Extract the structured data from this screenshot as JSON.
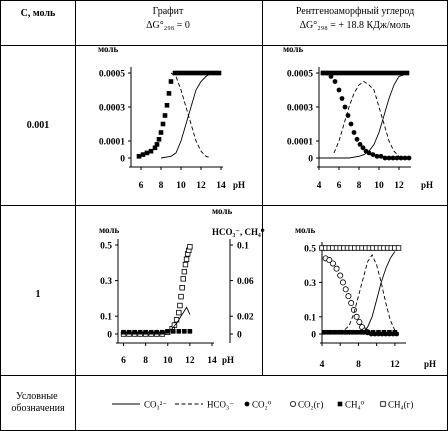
{
  "table": {
    "col_c": "C, моль",
    "col_graphite": "Графит",
    "col_graphite_sub": "ΔG°₂₉₈ = 0",
    "col_amorph": "Рентгеноаморфный углерод",
    "col_amorph_sub": "ΔG°₂₉₈ = + 18.8 КДж/моль",
    "row1": "0.001",
    "row2": "1",
    "row3": "Условные обозначения"
  },
  "legend": {
    "items": [
      {
        "symbol": "line-solid",
        "label": "CO₃²⁻"
      },
      {
        "symbol": "line-dashed",
        "label": "HCO₃⁻"
      },
      {
        "symbol": "filled-circle",
        "label": "CO₂⁰"
      },
      {
        "symbol": "open-circle",
        "label": "CO₂(г)"
      },
      {
        "symbol": "filled-square",
        "label": "CH₄⁰"
      },
      {
        "symbol": "open-square",
        "label": "CH₄(г)"
      }
    ]
  },
  "chart_data": [
    {
      "type": "line",
      "panel": "graphite-0.001",
      "ylabel": "моль",
      "xlabel": "pH",
      "xlim": [
        5,
        14
      ],
      "ylim": [
        0,
        0.0005
      ],
      "xticks": [
        6,
        8,
        10,
        12,
        14
      ],
      "yticks": [
        0,
        0.0001,
        0.0003,
        0.0005
      ],
      "ytick_labels": [
        "0",
        "0.0001",
        "0.0003",
        "0.0005"
      ],
      "series": [
        {
          "style": "line-solid",
          "x": [
            8,
            9,
            9.5,
            10,
            10.5,
            11,
            11.5,
            12,
            12.5,
            13,
            14
          ],
          "y": [
            0,
            1e-05,
            3e-05,
            0.0001,
            0.0002,
            0.0003,
            0.0004,
            0.00045,
            0.00048,
            0.0005,
            0.0005
          ]
        },
        {
          "style": "line-dashed",
          "x": [
            9,
            9.5,
            10,
            10.5,
            11,
            11.5,
            12,
            12.5,
            13
          ],
          "y": [
            0.0005,
            0.00048,
            0.0004,
            0.0003,
            0.0002,
            0.0001,
            4e-05,
            1e-05,
            0
          ]
        },
        {
          "style": "filled-square",
          "x": [
            5.8,
            6.2,
            6.6,
            7,
            7.4,
            7.6,
            7.8,
            8,
            8.2,
            8.4,
            8.6,
            8.8,
            9,
            9.4,
            9.8,
            10.2,
            10.6,
            11,
            11.4,
            11.8,
            12.2,
            12.6,
            13,
            13.4,
            13.8
          ],
          "y": [
            1e-05,
            2e-05,
            3e-05,
            4e-05,
            6e-05,
            8e-05,
            0.00011,
            0.00015,
            0.0002,
            0.00025,
            0.00031,
            0.00038,
            0.00045,
            0.0005,
            0.0005,
            0.0005,
            0.0005,
            0.0005,
            0.0005,
            0.0005,
            0.0005,
            0.0005,
            0.0005,
            0.0005,
            0.0005
          ]
        }
      ]
    },
    {
      "type": "line",
      "panel": "amorphous-0.001",
      "ylabel": "моль",
      "xlabel": "pH",
      "xlim": [
        4,
        13
      ],
      "ylim": [
        0,
        0.0005
      ],
      "xticks": [
        4,
        6,
        8,
        10,
        12
      ],
      "yticks": [
        0,
        0.0001,
        0.0003,
        0.0005
      ],
      "ytick_labels": [
        "0",
        "0.0001",
        "0.0003",
        "0.0005"
      ],
      "series": [
        {
          "style": "line-solid",
          "x": [
            4,
            6,
            7,
            8,
            8.5,
            9,
            9.5,
            10,
            10.5,
            11,
            11.5,
            12,
            13
          ],
          "y": [
            0,
            0,
            0,
            1e-05,
            2e-05,
            4e-05,
            8e-05,
            0.00015,
            0.00025,
            0.00035,
            0.00043,
            0.00048,
            0.0005
          ]
        },
        {
          "style": "line-dashed",
          "x": [
            5.5,
            6,
            6.5,
            7,
            7.5,
            8,
            8.5,
            9,
            9.5,
            10,
            10.5,
            11,
            11.5,
            12
          ],
          "y": [
            3e-05,
            0.0001,
            0.0002,
            0.0003,
            0.00038,
            0.00043,
            0.00045,
            0.00043,
            0.0004,
            0.0003,
            0.0002,
            0.0001,
            4e-05,
            1e-05
          ]
        },
        {
          "style": "filled-circle",
          "x": [
            4.4,
            4.8,
            5.2,
            5.6,
            6,
            6.3,
            6.6,
            6.9,
            7.2,
            7.5,
            7.8,
            8.1,
            8.4,
            8.7,
            9,
            9.4,
            9.8,
            10.2,
            10.6,
            11,
            11.4,
            11.8,
            12.2,
            12.6,
            13
          ],
          "y": [
            0.0005,
            0.0005,
            0.00048,
            0.00045,
            0.0004,
            0.00035,
            0.0003,
            0.00025,
            0.0002,
            0.00015,
            0.00011,
            8e-05,
            6e-05,
            4e-05,
            3e-05,
            2e-05,
            1e-05,
            1e-05,
            0,
            0,
            0,
            0,
            0,
            0,
            0
          ]
        },
        {
          "style": "filled-square",
          "x": [
            4.4,
            4.8,
            5.2,
            5.6,
            6,
            6.4,
            6.8,
            7.2,
            7.6,
            8,
            8.4,
            8.8,
            9.2,
            9.6,
            10,
            10.4,
            10.8,
            11.2,
            11.6,
            12,
            12.4,
            12.8
          ],
          "y": [
            0.0005,
            0.0005,
            0.0005,
            0.0005,
            0.0005,
            0.0005,
            0.0005,
            0.0005,
            0.0005,
            0.0005,
            0.0005,
            0.0005,
            0.0005,
            0.0005,
            0.0005,
            0.0005,
            0.0005,
            0.0005,
            0.0005,
            0.0005,
            0.0005,
            0.0005
          ]
        }
      ]
    },
    {
      "type": "line",
      "panel": "graphite-1",
      "ylabel": "моль",
      "ylabel_right": "моль",
      "ylabel_right2": "HCO₃⁻, CH₄⁰",
      "xlabel": "pH",
      "xlim": [
        5.5,
        14
      ],
      "ylim": [
        0,
        0.5
      ],
      "y2lim": [
        0,
        0.1
      ],
      "xticks": [
        6,
        8,
        10,
        12,
        14
      ],
      "yticks": [
        0,
        0.1,
        0.3,
        0.5
      ],
      "ytick_labels": [
        "0",
        "0.1",
        "0.3",
        "0.5"
      ],
      "y2ticks": [
        0,
        0.02,
        0.06,
        0.1
      ],
      "y2tick_labels": [
        "0",
        "0.02",
        "0.06",
        "0.1"
      ],
      "series": [
        {
          "style": "open-square",
          "x": [
            6,
            6.5,
            7,
            7.5,
            8,
            8.5,
            9,
            9.5,
            10,
            10.4,
            10.6,
            10.8,
            11,
            11.1,
            11.2,
            11.3,
            11.4,
            11.5,
            11.6,
            11.7,
            11.8,
            11.9,
            12
          ],
          "y": [
            0,
            0,
            0,
            0,
            0,
            0,
            0,
            0,
            0.01,
            0.03,
            0.05,
            0.08,
            0.12,
            0.16,
            0.21,
            0.26,
            0.31,
            0.35,
            0.39,
            0.42,
            0.45,
            0.47,
            0.49
          ]
        },
        {
          "style": "line-solid",
          "x": [
            6,
            8,
            9.5,
            10,
            10.4,
            10.8,
            11.2,
            11.5,
            11.7,
            12
          ],
          "y": [
            0.001,
            0.001,
            0.002,
            0.003,
            0.006,
            0.012,
            0.02,
            0.026,
            0.03,
            0.022
          ]
        },
        {
          "style": "filled-square",
          "x": [
            6,
            6.5,
            7,
            7.5,
            8,
            8.5,
            9,
            9.5,
            10,
            10.5,
            11,
            11.5,
            12
          ],
          "y": [
            0.002,
            0.002,
            0.002,
            0.002,
            0.002,
            0.002,
            0.002,
            0.002,
            0.003,
            0.003,
            0.003,
            0.003,
            0.003
          ]
        }
      ]
    },
    {
      "type": "line",
      "panel": "amorphous-1",
      "ylabel": "моль",
      "xlabel": "pH",
      "xlim": [
        4,
        13
      ],
      "ylim": [
        0,
        0.5
      ],
      "xticks": [
        4,
        8,
        12
      ],
      "xtick_labels_extra": [
        6,
        10
      ],
      "yticks": [
        0,
        0.1,
        0.3,
        0.5
      ],
      "ytick_labels": [
        "0",
        "0.1",
        "0.3",
        "0.5"
      ],
      "series": [
        {
          "style": "open-square",
          "x": [
            4,
            4.4,
            4.8,
            5.2,
            5.6,
            6,
            6.4,
            6.8,
            7.2,
            7.6,
            8,
            8.4,
            8.8,
            9.2,
            9.6,
            10,
            10.4,
            10.8,
            11.2,
            11.6,
            12,
            12.4
          ],
          "y": [
            0.5,
            0.5,
            0.5,
            0.5,
            0.5,
            0.5,
            0.5,
            0.5,
            0.5,
            0.5,
            0.5,
            0.5,
            0.5,
            0.5,
            0.5,
            0.5,
            0.5,
            0.5,
            0.5,
            0.5,
            0.5,
            0.5
          ]
        },
        {
          "style": "open-circle",
          "x": [
            4.4,
            4.8,
            5.2,
            5.6,
            6,
            6.3,
            6.6,
            6.9,
            7.2,
            7.5,
            7.8,
            8.1,
            8.4,
            8.7,
            9
          ],
          "y": [
            0.44,
            0.43,
            0.41,
            0.38,
            0.34,
            0.3,
            0.26,
            0.22,
            0.18,
            0.14,
            0.1,
            0.07,
            0.04,
            0.02,
            0.01
          ]
        },
        {
          "style": "filled-circle",
          "x": [
            4.2,
            4.6,
            5,
            5.4,
            5.8,
            6.2,
            6.6,
            7,
            7.4,
            7.8,
            8.2,
            8.6,
            9,
            9.4,
            9.8,
            10.2,
            10.6,
            11,
            11.4,
            11.8,
            12.2
          ],
          "y": [
            0.01,
            0.01,
            0.01,
            0.01,
            0.01,
            0.01,
            0.01,
            0.01,
            0.01,
            0.01,
            0.01,
            0.01,
            0.01,
            0,
            0,
            0,
            0,
            0,
            0,
            0,
            0
          ]
        },
        {
          "style": "filled-square",
          "x": [
            4.2,
            4.8,
            5.4,
            6,
            6.6,
            7.2,
            7.8,
            8.4,
            9,
            9.6,
            10.2,
            10.8,
            11.4,
            12
          ],
          "y": [
            0.01,
            0.01,
            0.01,
            0.01,
            0.01,
            0.01,
            0.01,
            0.01,
            0.01,
            0.01,
            0.01,
            0.01,
            0.01,
            0.01
          ]
        },
        {
          "style": "line-dashed",
          "x": [
            6,
            7,
            7.5,
            8,
            8.5,
            9,
            9.5,
            10,
            10.5,
            11,
            11.5,
            12
          ],
          "y": [
            0,
            0.05,
            0.12,
            0.22,
            0.32,
            0.42,
            0.46,
            0.4,
            0.3,
            0.18,
            0.08,
            0.02
          ]
        },
        {
          "style": "line-solid",
          "x": [
            7,
            8,
            8.5,
            9,
            9.5,
            10,
            10.5,
            11,
            11.5,
            12
          ],
          "y": [
            0,
            0,
            0.01,
            0.04,
            0.1,
            0.2,
            0.3,
            0.38,
            0.44,
            0.48
          ]
        }
      ]
    }
  ]
}
